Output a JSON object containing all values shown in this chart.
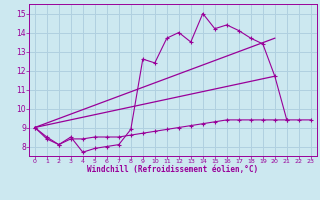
{
  "bg_color": "#cce8f0",
  "grid_color": "#aaccdd",
  "line_color": "#990099",
  "xlabel": "Windchill (Refroidissement éolien,°C)",
  "xlim": [
    -0.5,
    23.5
  ],
  "ylim": [
    7.5,
    15.5
  ],
  "yticks": [
    8,
    9,
    10,
    11,
    12,
    13,
    14,
    15
  ],
  "xticks": [
    0,
    1,
    2,
    3,
    4,
    5,
    6,
    7,
    8,
    9,
    10,
    11,
    12,
    13,
    14,
    15,
    16,
    17,
    18,
    19,
    20,
    21,
    22,
    23
  ],
  "series1_x": [
    0,
    1,
    2,
    3,
    4,
    5,
    6,
    7,
    8,
    9,
    10,
    11,
    12,
    13,
    14,
    15,
    16,
    17,
    18,
    19,
    20,
    21
  ],
  "series1_y": [
    9.0,
    8.4,
    8.1,
    8.5,
    7.7,
    7.9,
    8.0,
    8.1,
    8.9,
    12.6,
    12.4,
    13.7,
    14.0,
    13.5,
    15.0,
    14.2,
    14.4,
    14.1,
    13.7,
    13.4,
    11.7,
    9.4
  ],
  "series2_x": [
    0,
    1,
    2,
    3,
    4,
    5,
    6,
    7,
    8,
    9,
    10,
    11,
    12,
    13,
    14,
    15,
    16,
    17,
    18,
    19,
    20,
    21,
    22,
    23
  ],
  "series2_y": [
    9.0,
    8.5,
    8.1,
    8.4,
    8.4,
    8.5,
    8.5,
    8.5,
    8.6,
    8.7,
    8.8,
    8.9,
    9.0,
    9.1,
    9.2,
    9.3,
    9.4,
    9.4,
    9.4,
    9.4,
    9.4,
    9.4,
    9.4,
    9.4
  ],
  "series3_x": [
    0,
    20
  ],
  "series3_y": [
    9.0,
    13.7
  ],
  "series4_x": [
    0,
    20
  ],
  "series4_y": [
    9.0,
    11.7
  ]
}
